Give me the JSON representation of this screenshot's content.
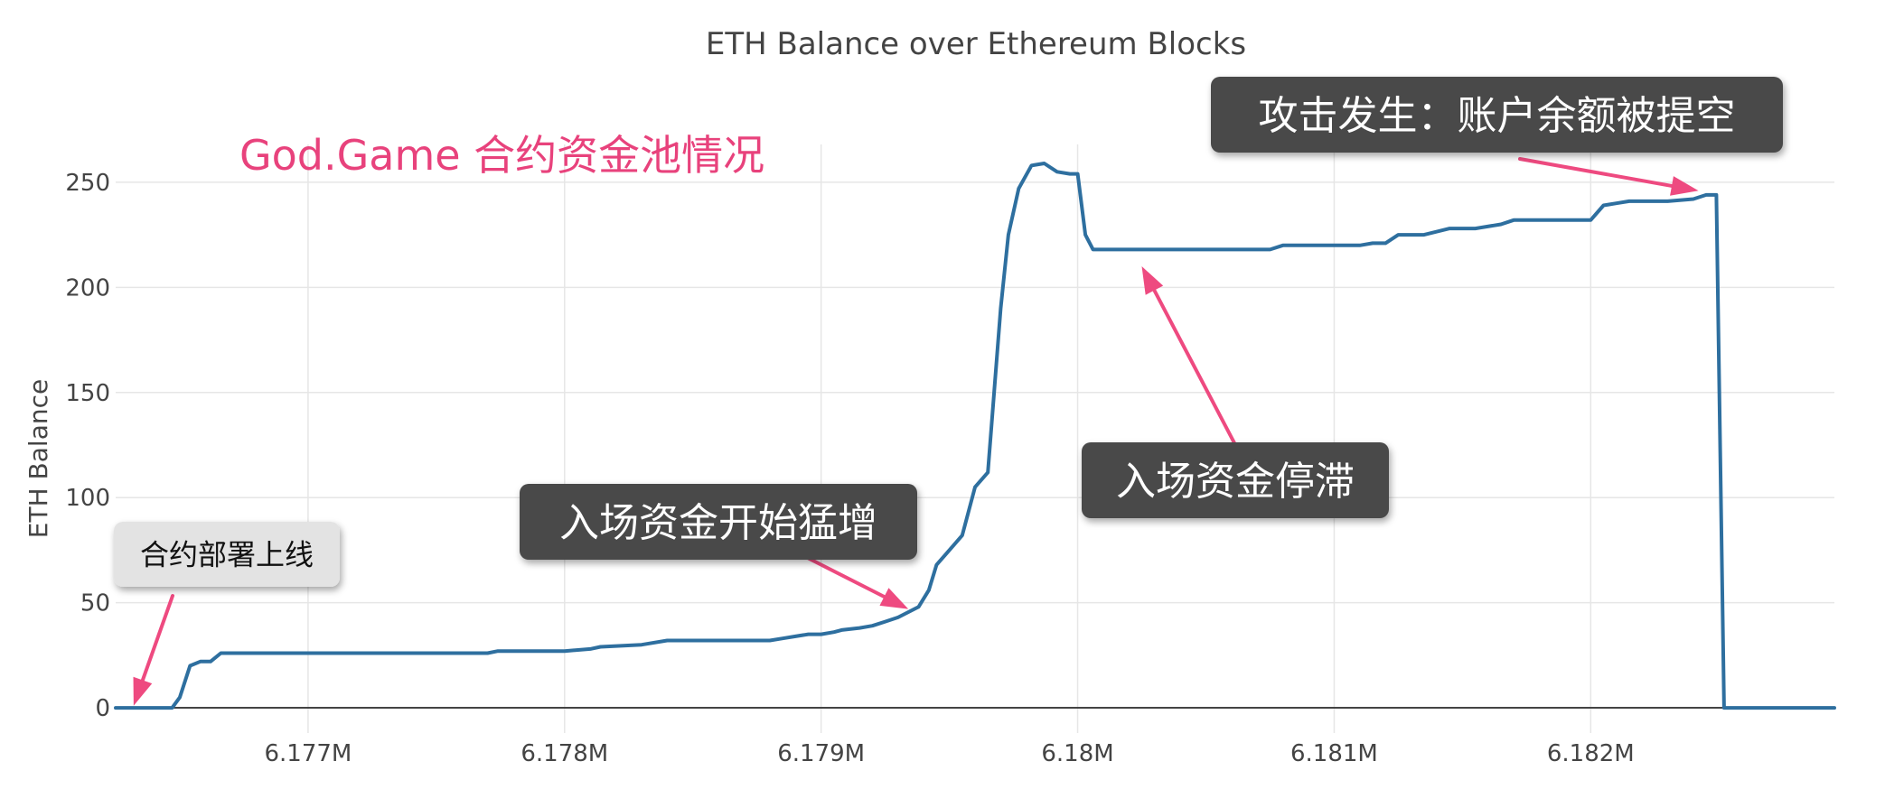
{
  "chart_data": {
    "type": "line",
    "title": "ETH Balance over Ethereum Blocks",
    "subtitle": "God.Game 合约资金池情况",
    "xlabel": "",
    "ylabel": "ETH Balance",
    "xlim": [
      6176250,
      6182950
    ],
    "ylim": [
      -12,
      268
    ],
    "x_ticks": [
      {
        "value": 6177000,
        "label": "6.177M"
      },
      {
        "value": 6178000,
        "label": "6.178M"
      },
      {
        "value": 6179000,
        "label": "6.179M"
      },
      {
        "value": 6180000,
        "label": "6.18M"
      },
      {
        "value": 6181000,
        "label": "6.181M"
      },
      {
        "value": 6182000,
        "label": "6.182M"
      }
    ],
    "y_ticks": [
      0,
      50,
      100,
      150,
      200,
      250
    ],
    "grid": true,
    "line_color": "#2e6f9f",
    "series": [
      {
        "name": "",
        "x": [
          6176250,
          6176470,
          6176500,
          6176540,
          6176580,
          6176620,
          6176660,
          6176700,
          6177000,
          6177500,
          6177700,
          6177740,
          6178000,
          6178100,
          6178140,
          6178300,
          6178400,
          6178450,
          6178500,
          6178800,
          6178850,
          6178900,
          6178950,
          6179000,
          6179050,
          6179080,
          6179150,
          6179200,
          6179250,
          6179300,
          6179380,
          6179420,
          6179450,
          6179500,
          6179550,
          6179600,
          6179650,
          6179700,
          6179730,
          6179770,
          6179820,
          6179870,
          6179920,
          6179970,
          6180000,
          6180030,
          6180060,
          6180100,
          6180150,
          6180250,
          6180300,
          6180600,
          6180750,
          6180800,
          6181100,
          6181150,
          6181200,
          6181250,
          6181350,
          6181450,
          6181550,
          6181650,
          6181700,
          6182000,
          6182050,
          6182100,
          6182150,
          6182300,
          6182400,
          6182450,
          6182470,
          6182490,
          6182520,
          6182700,
          6182950
        ],
        "y": [
          0,
          0,
          5,
          20,
          22,
          22,
          26,
          26,
          26,
          26,
          26,
          27,
          27,
          28,
          29,
          30,
          32,
          32,
          32,
          32,
          33,
          34,
          35,
          35,
          36,
          37,
          38,
          39,
          41,
          43,
          48,
          56,
          68,
          75,
          82,
          105,
          112,
          190,
          225,
          247,
          258,
          259,
          255,
          254,
          254,
          225,
          218,
          218,
          218,
          218,
          218,
          218,
          218,
          220,
          220,
          221,
          221,
          225,
          225,
          228,
          228,
          230,
          232,
          232,
          239,
          240,
          241,
          241,
          242,
          244,
          244,
          244,
          0,
          0,
          0
        ]
      }
    ],
    "annotations": [
      {
        "text": "合约部署上线",
        "style": "light",
        "target": {
          "x": 6176320,
          "y": 1
        }
      },
      {
        "text": "入场资金开始猛增",
        "style": "dark",
        "target": {
          "x": 6179340,
          "y": 47
        }
      },
      {
        "text": "入场资金停滞",
        "style": "dark",
        "target": {
          "x": 6180250,
          "y": 210
        }
      },
      {
        "text": "攻击发生：账户余额被提空",
        "style": "dark",
        "target": {
          "x": 6182420,
          "y": 246
        }
      }
    ],
    "colors": {
      "title": "#444444",
      "subtitle": "#e8427c",
      "axis_text": "#444444",
      "grid": "#e6e6e6",
      "zero_line": "#444444",
      "arrow": "#ee4a80",
      "dark_box": "#4a4a4a",
      "dark_box_text": "#ffffff",
      "light_box": "#e3e3e3",
      "light_box_text": "#111111"
    }
  }
}
